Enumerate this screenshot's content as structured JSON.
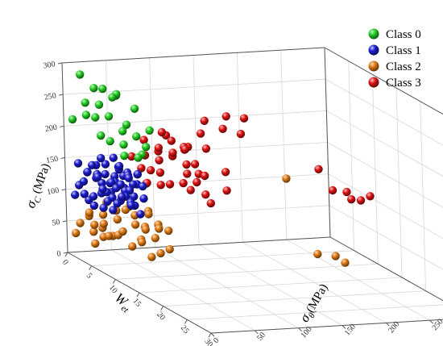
{
  "chart_data": {
    "type": "scatter",
    "projection": "3d",
    "title": "",
    "axes": {
      "x": {
        "label_main": "W",
        "label_sub": "et",
        "range": [
          0,
          30
        ],
        "ticks": [
          0,
          5,
          10,
          15,
          20,
          25,
          30
        ]
      },
      "y": {
        "label_prefix": "σ",
        "label_sub": "θ",
        "label_suffix": "(MPa)",
        "range": [
          0,
          300
        ],
        "ticks": [
          0,
          50,
          100,
          150,
          200,
          250,
          300
        ]
      },
      "z": {
        "label_prefix": "σ",
        "label_sub": "C",
        "label_suffix": " (MPa)",
        "range": [
          0,
          300
        ],
        "ticks": [
          0,
          50,
          100,
          150,
          200,
          250,
          300
        ]
      }
    },
    "grid": true,
    "legend_position": "top-right",
    "series": [
      {
        "name": "Class 0",
        "color": "#22cc22",
        "points": [
          [
            0,
            20,
            280
          ],
          [
            0,
            25,
            235
          ],
          [
            1,
            30,
            262
          ],
          [
            1,
            40,
            260
          ],
          [
            2,
            50,
            255
          ],
          [
            2,
            30,
            240
          ],
          [
            3,
            20,
            225
          ],
          [
            3,
            40,
            255
          ],
          [
            4,
            30,
            230
          ],
          [
            4,
            50,
            215
          ],
          [
            5,
            40,
            210
          ],
          [
            6,
            20,
            200
          ],
          [
            6,
            50,
            205
          ],
          [
            7,
            30,
            198
          ],
          [
            7,
            60,
            218
          ],
          [
            8,
            50,
            197
          ],
          [
            9,
            40,
            190
          ],
          [
            10,
            30,
            190
          ],
          [
            0,
            10,
            210
          ],
          [
            2,
            15,
            225
          ],
          [
            5,
            15,
            205
          ],
          [
            3,
            65,
            235
          ],
          [
            1,
            55,
            248
          ],
          [
            8,
            25,
            185
          ]
        ]
      },
      {
        "name": "Class 1",
        "color": "#1a1acc",
        "points": [
          [
            1,
            10,
            110
          ],
          [
            1,
            20,
            130
          ],
          [
            1,
            30,
            140
          ],
          [
            1,
            40,
            125
          ],
          [
            2,
            10,
            120
          ],
          [
            2,
            20,
            145
          ],
          [
            2,
            30,
            100
          ],
          [
            2,
            40,
            115
          ],
          [
            3,
            10,
            95
          ],
          [
            3,
            20,
            135
          ],
          [
            3,
            30,
            150
          ],
          [
            3,
            40,
            130
          ],
          [
            4,
            10,
            105
          ],
          [
            4,
            20,
            125
          ],
          [
            4,
            30,
            110
          ],
          [
            4,
            40,
            145
          ],
          [
            5,
            10,
            140
          ],
          [
            5,
            20,
            115
          ],
          [
            5,
            30,
            130
          ],
          [
            5,
            40,
            120
          ],
          [
            6,
            10,
            125
          ],
          [
            6,
            20,
            135
          ],
          [
            6,
            30,
            105
          ],
          [
            6,
            40,
            140
          ],
          [
            7,
            10,
            110
          ],
          [
            7,
            20,
            130
          ],
          [
            7,
            30,
            125
          ],
          [
            7,
            40,
            115
          ],
          [
            8,
            10,
            120
          ],
          [
            8,
            20,
            140
          ],
          [
            8,
            30,
            130
          ],
          [
            9,
            10,
            115
          ],
          [
            9,
            20,
            125
          ],
          [
            9,
            30,
            110
          ],
          [
            10,
            10,
            130
          ],
          [
            10,
            20,
            120
          ],
          [
            2,
            50,
            140
          ],
          [
            3,
            50,
            130
          ],
          [
            4,
            50,
            135
          ],
          [
            5,
            50,
            125
          ],
          [
            0,
            15,
            140
          ],
          [
            0,
            25,
            125
          ],
          [
            1,
            50,
            150
          ],
          [
            6,
            50,
            145
          ],
          [
            11,
            15,
            120
          ],
          [
            1,
            5,
            95
          ],
          [
            3,
            5,
            105
          ],
          [
            5,
            5,
            95
          ],
          [
            7,
            5,
            100
          ],
          [
            9,
            5,
            105
          ],
          [
            0,
            35,
            115
          ],
          [
            2,
            60,
            130
          ],
          [
            4,
            60,
            120
          ],
          [
            6,
            60,
            130
          ],
          [
            8,
            45,
            135
          ],
          [
            10,
            35,
            125
          ],
          [
            12,
            20,
            110
          ],
          [
            3,
            25,
            160
          ],
          [
            5,
            35,
            155
          ],
          [
            7,
            45,
            150
          ]
        ]
      },
      {
        "name": "Class 2",
        "color": "#dd7711",
        "points": [
          [
            0,
            10,
            30
          ],
          [
            1,
            10,
            50
          ],
          [
            2,
            15,
            65
          ],
          [
            3,
            10,
            75
          ],
          [
            4,
            10,
            60
          ],
          [
            5,
            15,
            80
          ],
          [
            6,
            10,
            70
          ],
          [
            7,
            10,
            55
          ],
          [
            8,
            15,
            85
          ],
          [
            9,
            10,
            65
          ],
          [
            10,
            10,
            75
          ],
          [
            11,
            15,
            55
          ],
          [
            12,
            20,
            70
          ],
          [
            3,
            30,
            90
          ],
          [
            5,
            30,
            85
          ],
          [
            7,
            30,
            95
          ],
          [
            9,
            30,
            80
          ],
          [
            11,
            30,
            85
          ],
          [
            13,
            20,
            90
          ],
          [
            14,
            10,
            75
          ],
          [
            15,
            20,
            85
          ],
          [
            16,
            10,
            60
          ],
          [
            17,
            15,
            70
          ],
          [
            18,
            20,
            80
          ],
          [
            6,
            40,
            95
          ],
          [
            8,
            35,
            90
          ],
          [
            10,
            40,
            100
          ],
          [
            2,
            30,
            45
          ],
          [
            4,
            20,
            40
          ],
          [
            6,
            20,
            50
          ],
          [
            14,
            30,
            95
          ],
          [
            16,
            30,
            100
          ],
          [
            1,
            25,
            35
          ],
          [
            5,
            5,
            35
          ],
          [
            9,
            45,
            100
          ],
          [
            12,
            40,
            92
          ],
          [
            5,
            225,
            120
          ],
          [
            14,
            210,
            40
          ],
          [
            15,
            225,
            40
          ],
          [
            17,
            225,
            38
          ]
        ]
      },
      {
        "name": "Class 3",
        "color": "#dd1111",
        "points": [
          [
            3,
            60,
            160
          ],
          [
            4,
            70,
            165
          ],
          [
            5,
            80,
            175
          ],
          [
            6,
            75,
            185
          ],
          [
            7,
            70,
            170
          ],
          [
            8,
            80,
            180
          ],
          [
            9,
            75,
            190
          ],
          [
            10,
            85,
            175
          ],
          [
            11,
            80,
            165
          ],
          [
            5,
            60,
            150
          ],
          [
            7,
            60,
            155
          ],
          [
            9,
            60,
            160
          ],
          [
            11,
            60,
            150
          ],
          [
            8,
            50,
            140
          ],
          [
            10,
            55,
            145
          ],
          [
            12,
            70,
            155
          ],
          [
            13,
            80,
            160
          ],
          [
            6,
            90,
            195
          ],
          [
            4,
            90,
            200
          ],
          [
            7,
            100,
            185
          ],
          [
            2,
            80,
            180
          ],
          [
            3,
            100,
            190
          ],
          [
            9,
            100,
            170
          ],
          [
            11,
            100,
            160
          ],
          [
            5,
            110,
            175
          ],
          [
            3,
            120,
            170
          ],
          [
            2,
            130,
            165
          ],
          [
            4,
            140,
            170
          ],
          [
            2,
            145,
            185
          ],
          [
            1,
            155,
            200
          ],
          [
            3,
            165,
            195
          ],
          [
            1,
            180,
            205
          ],
          [
            2,
            195,
            205
          ],
          [
            4,
            180,
            190
          ],
          [
            6,
            120,
            140
          ],
          [
            8,
            140,
            150
          ],
          [
            10,
            130,
            130
          ],
          [
            7,
            105,
            120
          ],
          [
            12,
            95,
            135
          ],
          [
            14,
            90,
            130
          ],
          [
            15,
            240,
            140
          ],
          [
            17,
            245,
            135
          ],
          [
            12,
            240,
            130
          ],
          [
            11,
            230,
            160
          ],
          [
            19,
            245,
            150
          ],
          [
            15,
            245,
            128
          ]
        ]
      }
    ]
  }
}
